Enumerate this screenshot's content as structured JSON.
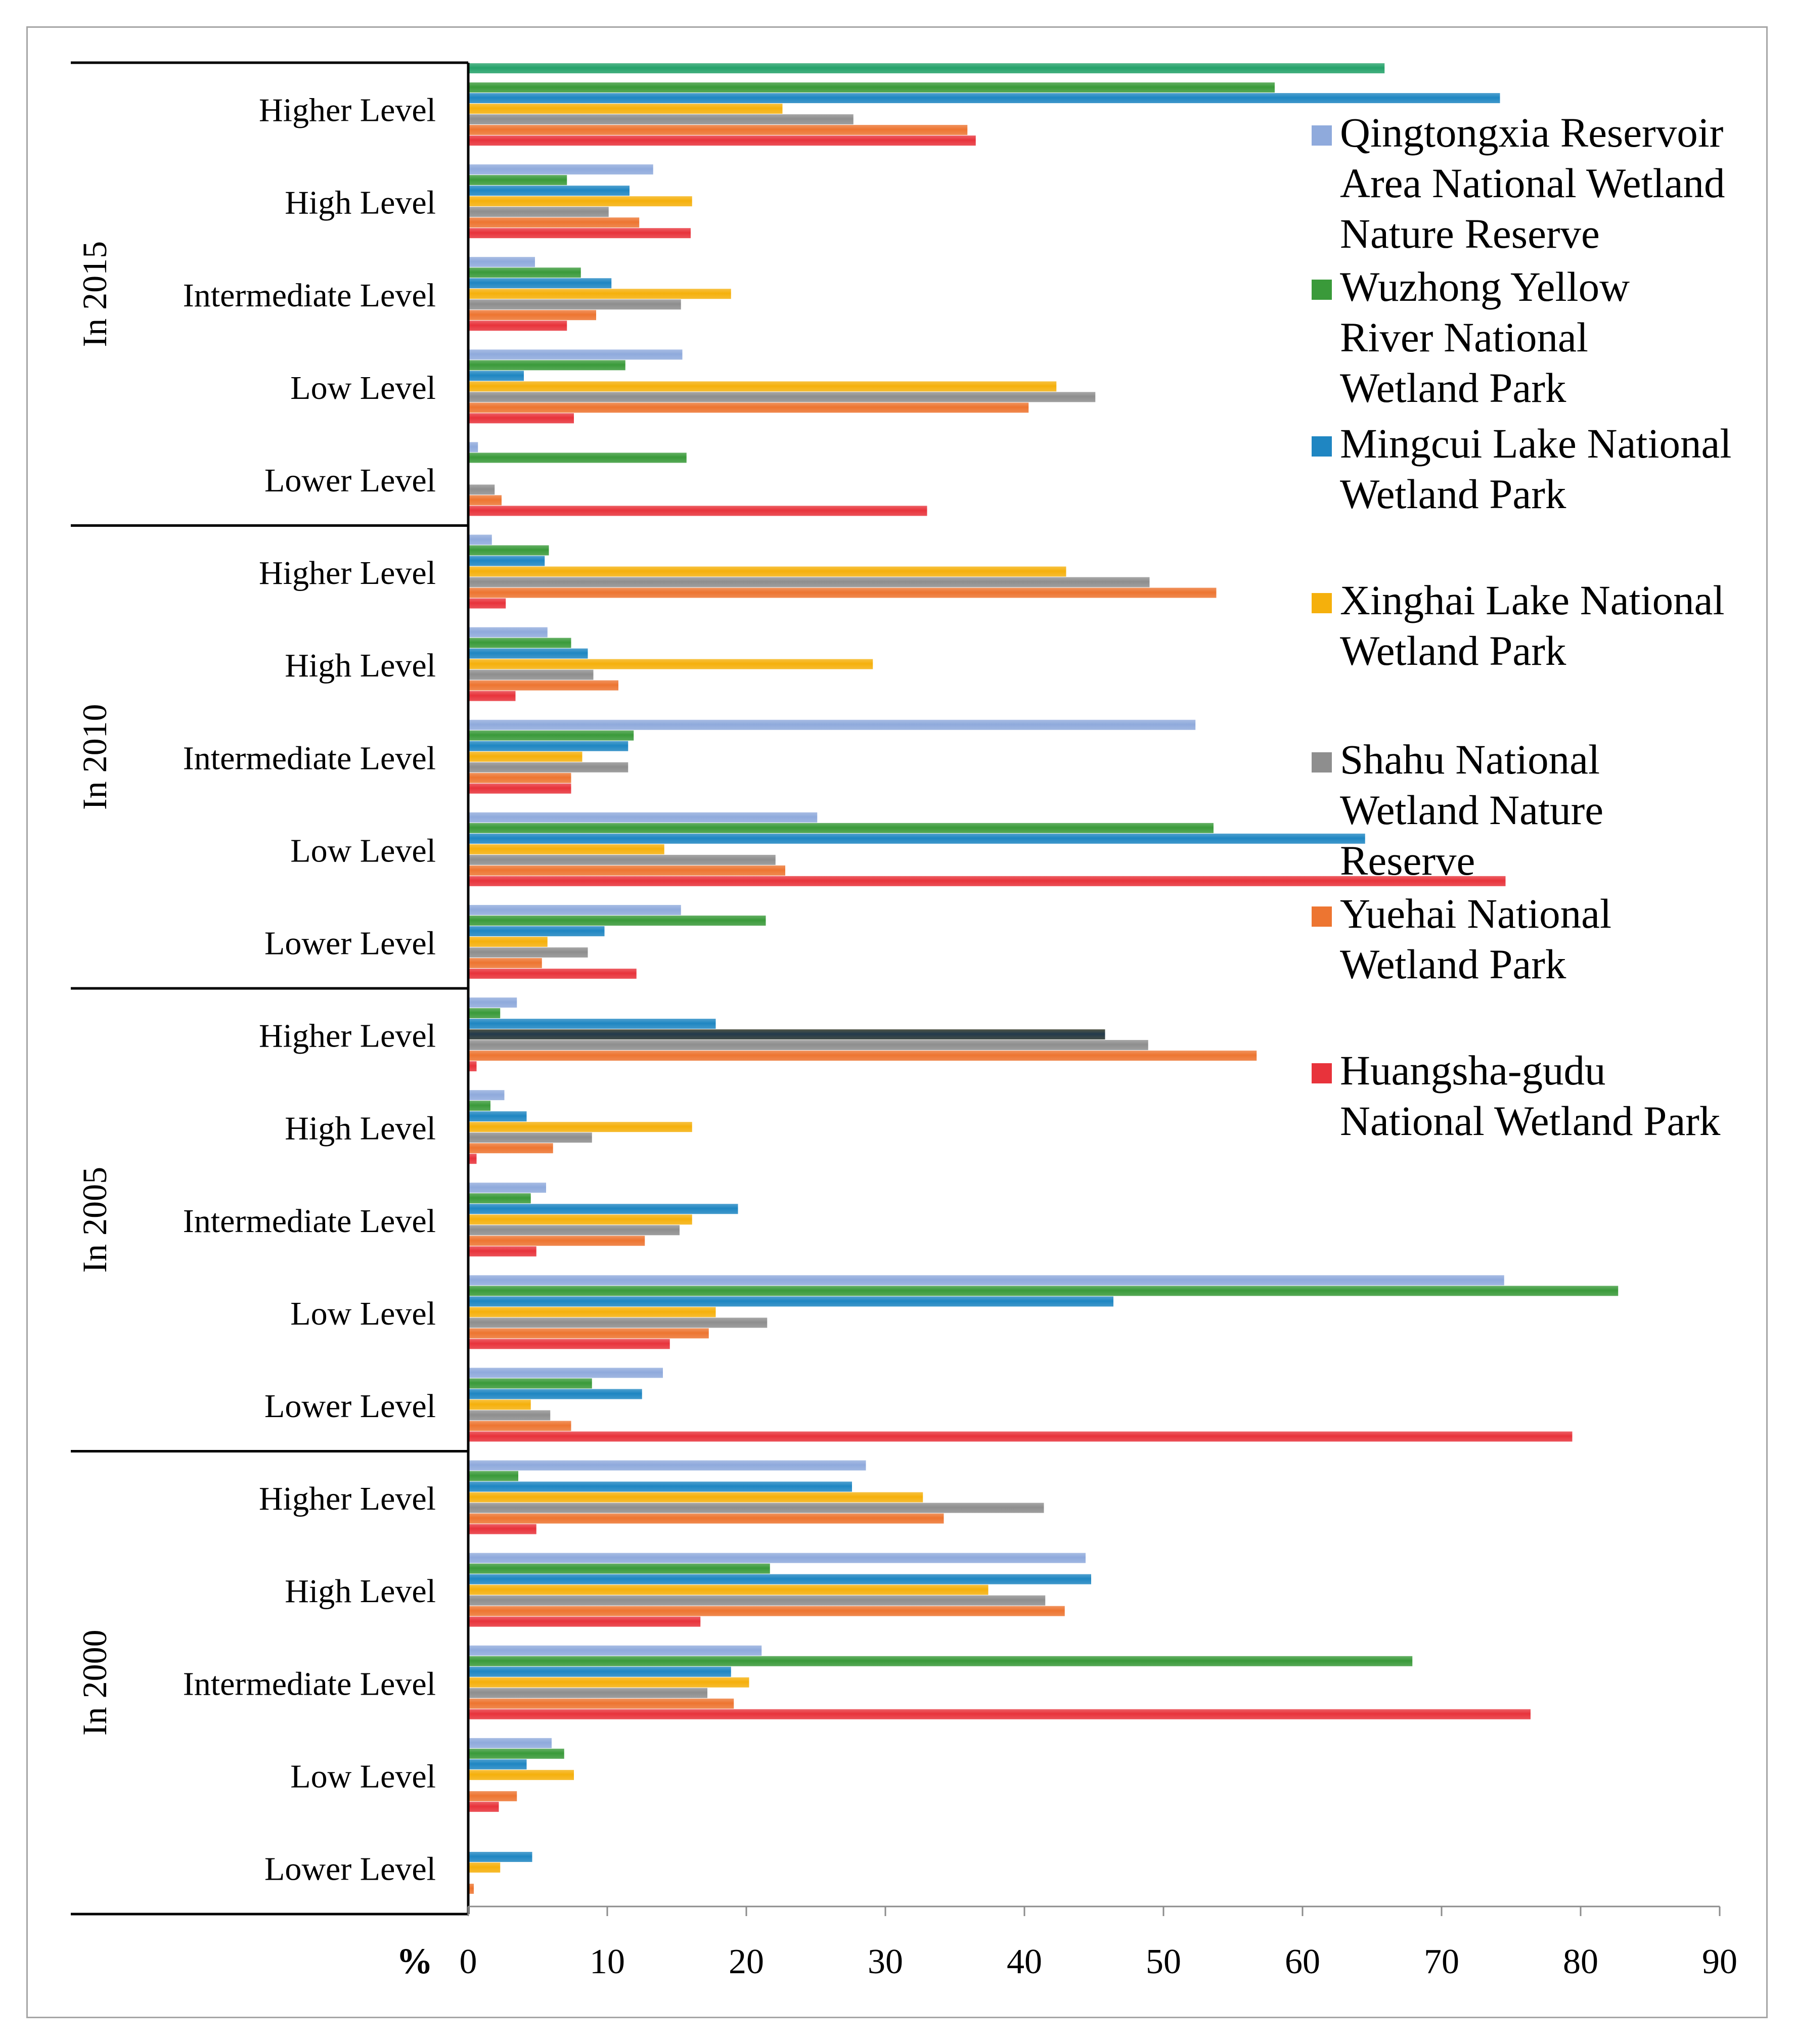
{
  "chart_data": {
    "type": "bar",
    "orientation": "horizontal",
    "x_unit": "%",
    "xlim": [
      0,
      90
    ],
    "x_ticks": [
      "0",
      "10",
      "20",
      "30",
      "40",
      "50",
      "60",
      "70",
      "80",
      "90"
    ],
    "grid": false,
    "legend_position": "right",
    "groups": [
      {
        "label": "In 2015",
        "categories": [
          {
            "label": "Higher Level",
            "values": [
              null,
              58,
              74.2,
              22.6,
              27.7,
              35.9,
              36.5
            ]
          },
          {
            "label": "High Level",
            "values": [
              13.3,
              7.1,
              11.6,
              16.1,
              10.1,
              12.3,
              16.0
            ]
          },
          {
            "label": "Intermediate Level",
            "values": [
              4.8,
              8.1,
              10.3,
              18.9,
              15.3,
              9.2,
              7.1
            ]
          },
          {
            "label": "Low Level",
            "values": [
              15.4,
              11.3,
              4.0,
              42.3,
              45.1,
              40.3,
              7.6
            ]
          },
          {
            "label": "Lower Level",
            "values": [
              0.7,
              15.7,
              null,
              null,
              1.9,
              2.4,
              33.0
            ]
          }
        ]
      },
      {
        "label": "In 2010",
        "categories": [
          {
            "label": "Higher Level",
            "values": [
              1.7,
              5.8,
              5.5,
              43.0,
              49.0,
              53.8,
              2.7
            ]
          },
          {
            "label": "High Level",
            "values": [
              5.7,
              7.4,
              8.6,
              29.1,
              9.0,
              10.8,
              3.4
            ]
          },
          {
            "label": "Intermediate Level",
            "values": [
              52.3,
              11.9,
              11.5,
              8.2,
              11.5,
              7.4,
              7.4
            ]
          },
          {
            "label": "Low Level",
            "values": [
              25.1,
              53.6,
              64.5,
              14.1,
              22.1,
              22.8,
              74.6
            ]
          },
          {
            "label": "Lower Level",
            "values": [
              15.3,
              21.4,
              9.8,
              5.7,
              8.6,
              5.3,
              12.1
            ]
          }
        ]
      },
      {
        "label": "In 2005",
        "categories": [
          {
            "label": "Higher Level",
            "values": [
              3.5,
              2.3,
              17.8,
              45.8,
              48.9,
              56.7,
              0.6
            ]
          },
          {
            "label": "High Level",
            "values": [
              2.6,
              1.6,
              4.2,
              16.1,
              8.9,
              6.1,
              0.6
            ]
          },
          {
            "label": "Intermediate Level",
            "values": [
              5.6,
              4.5,
              19.4,
              16.1,
              15.2,
              12.7,
              4.9
            ]
          },
          {
            "label": "Low Level",
            "values": [
              74.5,
              82.7,
              46.4,
              17.8,
              21.5,
              17.3,
              14.5
            ]
          },
          {
            "label": "Lower Level",
            "values": [
              14.0,
              8.9,
              12.5,
              4.5,
              5.9,
              7.4,
              79.4
            ]
          }
        ]
      },
      {
        "label": "In 2000",
        "categories": [
          {
            "label": "Higher Level",
            "values": [
              28.6,
              3.6,
              27.6,
              32.7,
              41.4,
              34.2,
              4.9
            ]
          },
          {
            "label": "High Level",
            "values": [
              44.4,
              21.7,
              44.8,
              37.4,
              41.5,
              42.9,
              16.7
            ]
          },
          {
            "label": "Intermediate Level",
            "values": [
              21.1,
              67.9,
              18.9,
              20.2,
              17.2,
              19.1,
              76.4
            ]
          },
          {
            "label": "Low Level",
            "values": [
              6.0,
              6.9,
              4.2,
              7.6,
              null,
              3.5,
              2.2
            ]
          },
          {
            "label": "Lower Level",
            "values": [
              null,
              null,
              4.6,
              2.3,
              null,
              0.4,
              null
            ]
          }
        ]
      }
    ],
    "series": [
      {
        "name": "Qingtongxia Reservoir Area National Wetland Nature Reserve",
        "legend_lines": [
          "Qingtongxia Reservoir",
          "Area National Wetland",
          "Nature Reserve"
        ],
        "color": "#8faadc"
      },
      {
        "name": "Wuzhong Yellow River National Wetland Park",
        "legend_lines": [
          "Wuzhong Yellow",
          "River National",
          "Wetland Park"
        ],
        "color": "#3a9a3a"
      },
      {
        "name": "Mingcui Lake National Wetland Park",
        "legend_lines": [
          "Mingcui Lake National",
          "Wetland Park"
        ],
        "color": "#1f86c2"
      },
      {
        "name": "Xinghai Lake National Wetland Park",
        "legend_lines": [
          "Xinghai Lake National",
          "Wetland Park"
        ],
        "color": "#f5b00c"
      },
      {
        "name": "Shahu National Wetland Nature Reserve",
        "legend_lines": [
          "Shahu National",
          "Wetland Nature",
          "Reserve"
        ],
        "color": "#8e8e8e"
      },
      {
        "name": "Yuehai National Wetland Park",
        "legend_lines": [
          " Yuehai National",
          "Wetland Park"
        ],
        "color": "#ed7531"
      },
      {
        "name": "Huangsha-gudu National Wetland Park",
        "legend_lines": [
          "Huangsha-gudu",
          "National Wetland Park"
        ],
        "color": "#e8333b"
      }
    ],
    "extra_bars": [
      {
        "group": "In 2015",
        "category": "Higher Level",
        "value": 65.9,
        "color": "#25a26a",
        "position": "above-first"
      },
      {
        "group": "In 2005",
        "category": "Higher Level",
        "value": 45.8,
        "color": "#233a4d",
        "position": "over-xinghai"
      }
    ]
  }
}
